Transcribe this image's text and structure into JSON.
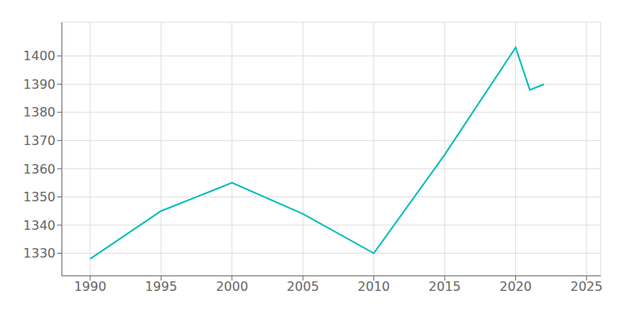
{
  "chart_data": {
    "type": "line",
    "x": [
      1990,
      1995,
      2000,
      2005,
      2010,
      2015,
      2020,
      2021,
      2022
    ],
    "values": [
      1328,
      1345,
      1355,
      1344,
      1330,
      1365,
      1403,
      1388,
      1390
    ],
    "color": "#00BCBC",
    "xlim": [
      1988,
      2026
    ],
    "ylim": [
      1322,
      1412
    ],
    "xticks": [
      1990,
      1995,
      2000,
      2005,
      2010,
      2015,
      2020,
      2025
    ],
    "yticks": [
      1330,
      1340,
      1350,
      1360,
      1370,
      1380,
      1390,
      1400
    ],
    "grid": true
  }
}
